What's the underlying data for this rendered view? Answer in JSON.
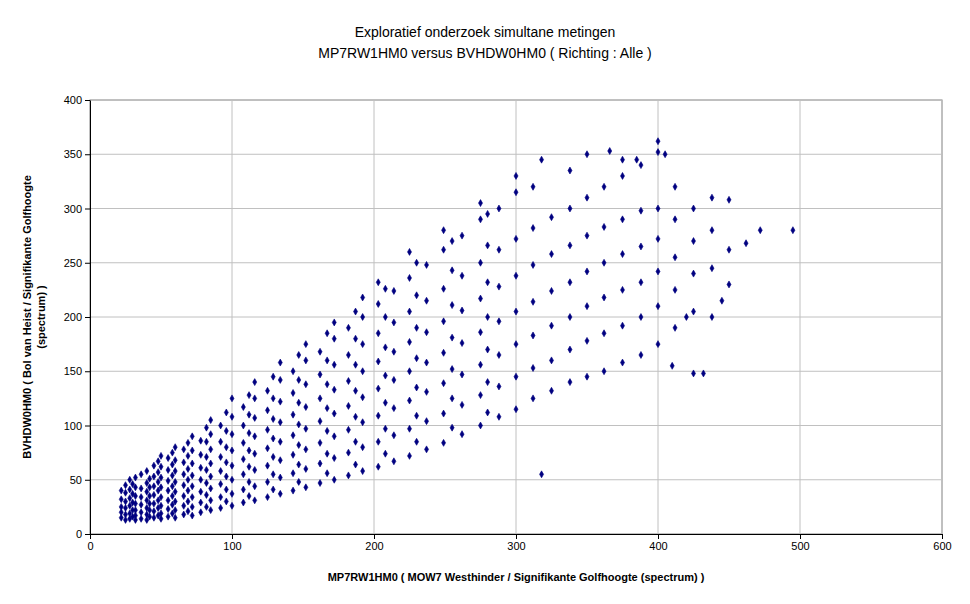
{
  "chart_data": {
    "type": "scatter",
    "title": [
      "Exploratief onderzoek simultane metingen",
      "MP7RW1HM0 versus BVHDW0HM0 ( Richting : Alle )"
    ],
    "xlabel": "MP7RW1HM0 ( MOW7 Westhinder / Signifikante Golfhoogte (spectrum) )",
    "ylabel": [
      "BVHDW0HM0 ( Bol van Heist / Signifikante Golfhoogte",
      "(spectrum) )"
    ],
    "color": "#000080",
    "marker": "diamond",
    "grid": true,
    "xlim": [
      0,
      600
    ],
    "ylim": [
      0,
      400
    ],
    "xticks": [
      0,
      100,
      200,
      300,
      400,
      500,
      600
    ],
    "yticks": [
      0,
      50,
      100,
      150,
      200,
      250,
      300,
      350,
      400
    ],
    "x": [
      22,
      22,
      22,
      22,
      22,
      25,
      25,
      25,
      25,
      25,
      25,
      28,
      28,
      28,
      28,
      28,
      28,
      30,
      30,
      30,
      30,
      30,
      32,
      32,
      32,
      32,
      32,
      32,
      32,
      36,
      36,
      36,
      36,
      36,
      36,
      40,
      40,
      40,
      40,
      40,
      40,
      40,
      42,
      42,
      42,
      42,
      42,
      42,
      45,
      45,
      45,
      45,
      45,
      45,
      45,
      48,
      48,
      48,
      48,
      48,
      48,
      48,
      50,
      50,
      50,
      50,
      50,
      50,
      50,
      50,
      55,
      55,
      55,
      55,
      55,
      55,
      55,
      58,
      58,
      58,
      58,
      58,
      58,
      58,
      60,
      60,
      60,
      60,
      60,
      60,
      60,
      60,
      66,
      66,
      66,
      66,
      66,
      66,
      66,
      69,
      69,
      69,
      69,
      69,
      69,
      69,
      72,
      72,
      72,
      72,
      72,
      72,
      72,
      72,
      78,
      78,
      78,
      78,
      78,
      78,
      78,
      82,
      82,
      82,
      82,
      82,
      82,
      82,
      85,
      85,
      85,
      85,
      85,
      85,
      85,
      85,
      92,
      92,
      92,
      92,
      92,
      92,
      92,
      96,
      96,
      96,
      96,
      96,
      96,
      96,
      100,
      100,
      100,
      100,
      100,
      100,
      100,
      100,
      108,
      108,
      108,
      108,
      108,
      108,
      108,
      112,
      112,
      112,
      112,
      112,
      112,
      112,
      116,
      116,
      116,
      116,
      116,
      116,
      116,
      116,
      125,
      125,
      125,
      125,
      125,
      125,
      125,
      129,
      129,
      129,
      129,
      129,
      129,
      129,
      134,
      134,
      134,
      134,
      134,
      134,
      134,
      134,
      143,
      143,
      143,
      143,
      143,
      143,
      143,
      147,
      147,
      147,
      147,
      147,
      147,
      147,
      152,
      152,
      152,
      152,
      152,
      152,
      152,
      152,
      162,
      162,
      162,
      162,
      162,
      162,
      162,
      167,
      167,
      167,
      167,
      167,
      167,
      167,
      172,
      172,
      172,
      172,
      172,
      172,
      172,
      172,
      182,
      182,
      182,
      182,
      182,
      182,
      182,
      187,
      187,
      187,
      187,
      187,
      187,
      187,
      192,
      192,
      192,
      192,
      192,
      192,
      192,
      192,
      203,
      203,
      203,
      203,
      203,
      203,
      203,
      203,
      208,
      208,
      208,
      208,
      208,
      208,
      208,
      214,
      214,
      214,
      214,
      214,
      214,
      214,
      225,
      225,
      225,
      225,
      225,
      225,
      225,
      225,
      230,
      230,
      230,
      230,
      230,
      230,
      230,
      237,
      237,
      237,
      237,
      237,
      237,
      237,
      249,
      249,
      249,
      249,
      249,
      249,
      249,
      249,
      255,
      255,
      255,
      255,
      255,
      255,
      255,
      262,
      262,
      262,
      262,
      262,
      262,
      262,
      275,
      275,
      275,
      275,
      275,
      275,
      275,
      275,
      280,
      280,
      280,
      280,
      280,
      280,
      280,
      288,
      288,
      288,
      288,
      288,
      288,
      288,
      300,
      300,
      300,
      300,
      300,
      300,
      300,
      300,
      312,
      312,
      312,
      312,
      312,
      312,
      312,
      318,
      318,
      325,
      325,
      325,
      325,
      325,
      325,
      338,
      338,
      338,
      338,
      338,
      338,
      338,
      350,
      350,
      350,
      350,
      350,
      350,
      350,
      362,
      362,
      362,
      362,
      362,
      362,
      366,
      375,
      375,
      375,
      375,
      375,
      375,
      375,
      385,
      388,
      388,
      388,
      388,
      388,
      388,
      400,
      400,
      400,
      400,
      400,
      400,
      400,
      405,
      410,
      412,
      412,
      412,
      412,
      412,
      420,
      425,
      425,
      425,
      425,
      425,
      432,
      438,
      438,
      438,
      438,
      445,
      450,
      450,
      450,
      462,
      472,
      495
    ],
    "values": [
      15,
      20,
      25,
      32,
      40,
      13,
      18,
      24,
      30,
      38,
      45,
      14,
      19,
      26,
      33,
      41,
      50,
      16,
      22,
      29,
      37,
      46,
      13,
      17,
      22,
      28,
      35,
      43,
      52,
      14,
      20,
      27,
      34,
      42,
      55,
      13,
      18,
      24,
      31,
      39,
      47,
      58,
      16,
      22,
      28,
      35,
      43,
      51,
      15,
      21,
      28,
      36,
      44,
      53,
      63,
      17,
      24,
      31,
      40,
      48,
      57,
      67,
      14,
      19,
      26,
      34,
      43,
      52,
      62,
      72,
      16,
      23,
      31,
      40,
      49,
      59,
      70,
      19,
      27,
      35,
      44,
      54,
      64,
      75,
      15,
      22,
      30,
      39,
      48,
      58,
      68,
      80,
      18,
      26,
      35,
      45,
      55,
      66,
      78,
      21,
      30,
      40,
      50,
      60,
      72,
      84,
      17,
      25,
      34,
      44,
      54,
      65,
      77,
      90,
      20,
      29,
      39,
      50,
      61,
      73,
      86,
      25,
      36,
      47,
      59,
      71,
      85,
      98,
      22,
      31,
      42,
      53,
      65,
      78,
      92,
      105,
      24,
      34,
      46,
      58,
      71,
      85,
      100,
      30,
      41,
      53,
      66,
      80,
      95,
      112,
      26,
      37,
      50,
      63,
      77,
      92,
      108,
      125,
      29,
      41,
      55,
      69,
      84,
      100,
      117,
      35,
      48,
      62,
      77,
      93,
      110,
      128,
      31,
      44,
      59,
      74,
      90,
      107,
      125,
      140,
      34,
      48,
      63,
      79,
      96,
      114,
      132,
      41,
      55,
      71,
      88,
      106,
      125,
      145,
      37,
      52,
      68,
      85,
      103,
      122,
      142,
      158,
      40,
      56,
      73,
      91,
      110,
      130,
      150,
      48,
      64,
      82,
      101,
      121,
      142,
      165,
      43,
      60,
      78,
      97,
      117,
      138,
      160,
      175,
      47,
      65,
      84,
      104,
      125,
      147,
      168,
      56,
      74,
      95,
      116,
      138,
      160,
      185,
      50,
      70,
      90,
      111,
      133,
      156,
      180,
      195,
      54,
      75,
      96,
      118,
      141,
      165,
      190,
      64,
      85,
      108,
      132,
      156,
      180,
      205,
      58,
      80,
      103,
      126,
      150,
      175,
      200,
      218,
      62,
      85,
      109,
      134,
      159,
      185,
      212,
      232,
      74,
      97,
      121,
      146,
      172,
      200,
      226,
      67,
      91,
      116,
      142,
      168,
      195,
      224,
      72,
      97,
      123,
      150,
      177,
      205,
      236,
      260,
      85,
      109,
      135,
      162,
      190,
      220,
      250,
      78,
      104,
      131,
      158,
      186,
      215,
      248,
      84,
      111,
      139,
      167,
      196,
      226,
      262,
      280,
      98,
      125,
      152,
      181,
      211,
      243,
      270,
      92,
      119,
      147,
      176,
      206,
      238,
      275,
      100,
      128,
      156,
      186,
      217,
      250,
      290,
      305,
      112,
      140,
      170,
      200,
      232,
      266,
      295,
      108,
      136,
      165,
      196,
      228,
      262,
      300,
      115,
      145,
      175,
      205,
      238,
      272,
      315,
      330,
      125,
      153,
      183,
      214,
      248,
      282,
      320,
      55,
      345,
      132,
      160,
      192,
      224,
      258,
      292,
      140,
      170,
      200,
      232,
      266,
      300,
      335,
      145,
      178,
      210,
      242,
      275,
      310,
      350,
      150,
      185,
      218,
      250,
      283,
      320,
      353,
      158,
      192,
      225,
      258,
      290,
      330,
      345,
      345,
      165,
      200,
      232,
      265,
      298,
      340,
      175,
      210,
      242,
      272,
      300,
      352,
      362,
      350,
      155,
      190,
      225,
      255,
      290,
      320,
      200,
      148,
      205,
      240,
      270,
      300,
      148,
      200,
      245,
      280,
      310,
      215,
      230,
      262,
      308,
      268,
      280,
      280
    ]
  }
}
